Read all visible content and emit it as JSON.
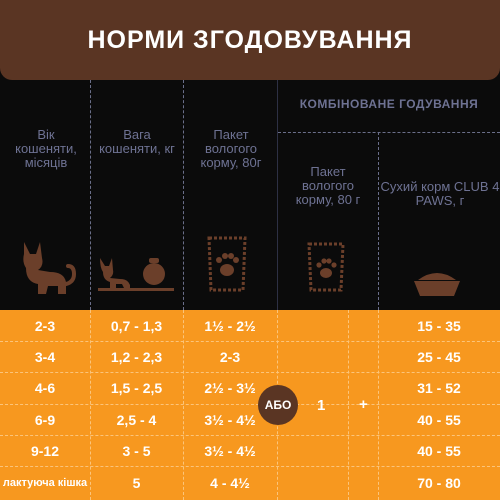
{
  "title": "НОРМИ ЗГОДОВУВАННЯ",
  "combined_header": "КОМБІНОВАНЕ ГОДУВАННЯ",
  "columns": {
    "age": "Вік кошеняти, місяців",
    "weight": "Вага кошеняти, кг",
    "wet": "Пакет вологого корму, 80г",
    "combo_wet": "Пакет вологого корму, 80 г",
    "combo_dry": "Сухий корм CLUB 4 PAWS, г"
  },
  "icons": [
    "kitten-icon",
    "kitten-with-weight-icon",
    "wet-food-pouch-icon",
    "wet-food-pouch-icon",
    "food-bowl-icon"
  ],
  "rows": [
    {
      "age": "2-3",
      "weight": "0,7 - 1,3",
      "wet": "1½ - 2½",
      "dry": "15 - 35"
    },
    {
      "age": "3-4",
      "weight": "1,2 - 2,3",
      "wet": "2-3",
      "dry": "25 - 45"
    },
    {
      "age": "4-6",
      "weight": "1,5 - 2,5",
      "wet": "2½ - 3½",
      "dry": "31 - 52"
    },
    {
      "age": "6-9",
      "weight": "2,5 - 4",
      "wet": "3½ - 4½",
      "dry": "40 - 55"
    },
    {
      "age": "9-12",
      "weight": "3 - 5",
      "wet": "3½ - 4½",
      "dry": "40 - 55"
    },
    {
      "age": "лактуюча кішка",
      "weight": "5",
      "wet": "4 - 4½",
      "dry": "70 - 80"
    }
  ],
  "or_label": "АБО",
  "combo_wet_value": "1",
  "plus": "+",
  "colors": {
    "header_brown": "#5a3523",
    "table_orange": "#f7981f",
    "icon_brown": "#6b3f2a",
    "header_text_blue": "#6e7293"
  }
}
